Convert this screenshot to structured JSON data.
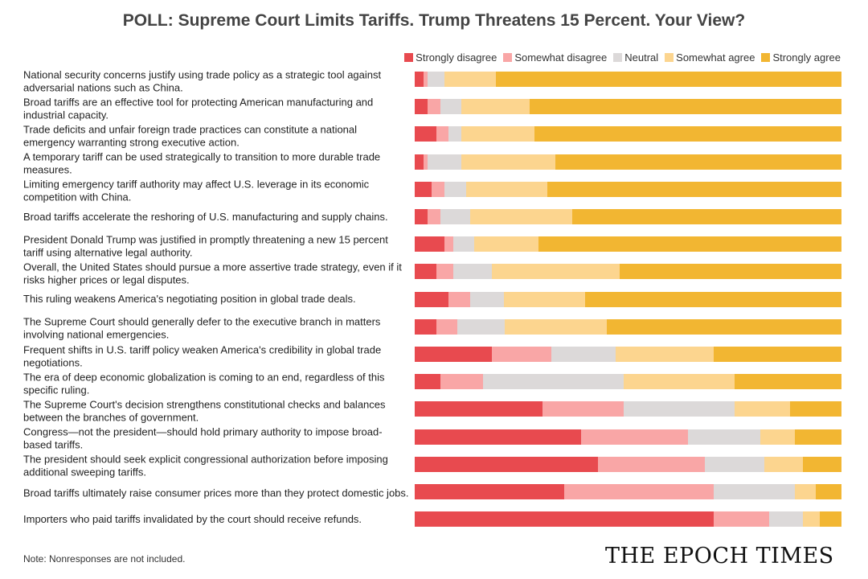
{
  "chart_data": {
    "type": "bar",
    "orientation": "horizontal",
    "stacked": true,
    "unit": "percent",
    "title": "POLL: Supreme Court Limits Tariffs. Trump Threatens 15 Percent. Your View?",
    "legend_placement": "top-right",
    "grid": false,
    "xlim": [
      0,
      100
    ],
    "categories": [
      "National security concerns justify using trade policy as a strategic tool against adversarial nations such as China.",
      "Broad tariffs are an effective tool for protecting American manufacturing and industrial capacity.",
      "Trade deficits and unfair foreign trade practices can constitute a national emergency warranting strong executive action.",
      "A temporary tariff can be used strategically to transition to more durable trade measures.",
      "Limiting emergency tariff authority may affect U.S. leverage in its economic competition with China.",
      "Broad tariffs accelerate the reshoring of U.S. manufacturing and supply chains.",
      "President Donald Trump was justified in promptly threatening a new 15 percent tariff using alternative legal authority.",
      "Overall, the United States should pursue a more assertive trade strategy, even if it risks higher prices or legal disputes.",
      "This ruling weakens America's negotiating position in global trade deals.",
      "The Supreme Court should generally defer to the executive branch in matters involving national emergencies.",
      "Frequent shifts in U.S. tariff policy weaken America's credibility in global trade negotiations.",
      "The era of deep economic globalization is coming to an end, regardless of this specific ruling.",
      "The Supreme Court's decision strengthens constitutional checks and balances between the branches of government.",
      "Congress—not the president—should hold primary authority to impose broad-based tariffs.",
      "The president should seek explicit congressional authorization before imposing additional sweeping tariffs.",
      "Broad tariffs ultimately raise consumer prices more than they protect domestic jobs.",
      "Importers who paid tariffs invalidated by the court should receive refunds."
    ],
    "series": [
      {
        "name": "Strongly disagree",
        "color": "#e84a4f",
        "values": [
          2,
          3,
          5,
          2,
          4,
          3,
          7,
          5,
          8,
          5,
          18,
          6,
          30,
          39,
          43,
          35,
          70
        ]
      },
      {
        "name": "Somewhat disagree",
        "color": "#f9a6a6",
        "values": [
          1,
          3,
          3,
          1,
          3,
          3,
          2,
          4,
          5,
          5,
          14,
          10,
          19,
          25,
          25,
          35,
          13
        ]
      },
      {
        "name": "Neutral",
        "color": "#dcd9d9",
        "values": [
          4,
          5,
          3,
          8,
          5,
          7,
          5,
          9,
          8,
          11,
          15,
          33,
          26,
          17,
          14,
          19,
          8
        ]
      },
      {
        "name": "Somewhat agree",
        "color": "#fcd58f",
        "values": [
          12,
          16,
          17,
          22,
          19,
          24,
          15,
          30,
          19,
          24,
          23,
          26,
          13,
          8,
          9,
          5,
          4
        ]
      },
      {
        "name": "Strongly agree",
        "color": "#f2b632",
        "values": [
          81,
          73,
          72,
          67,
          69,
          63,
          71,
          52,
          60,
          55,
          30,
          25,
          12,
          11,
          9,
          6,
          5
        ]
      }
    ]
  },
  "footer": {
    "note": "Note: Nonresponses are not included.",
    "logo": "THE EPOCH TIMES"
  }
}
